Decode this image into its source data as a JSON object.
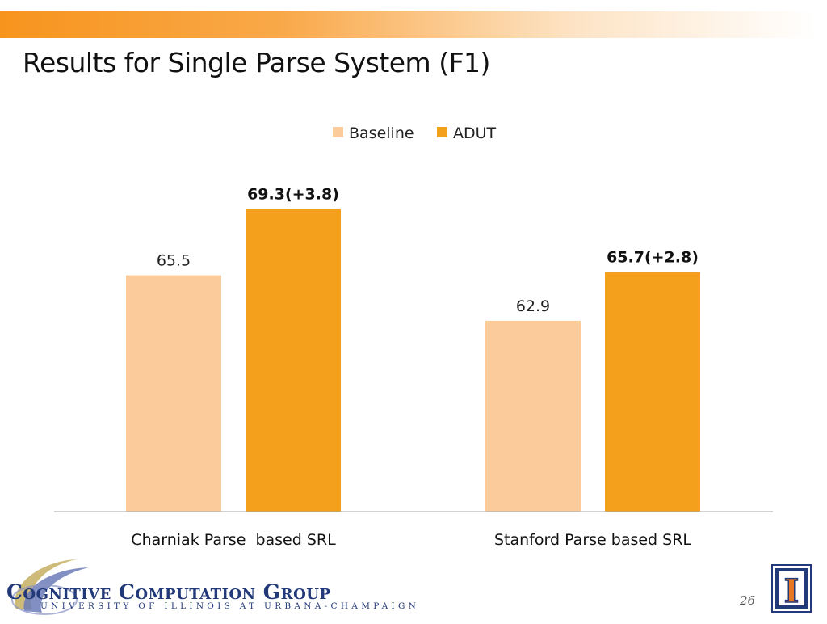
{
  "slide": {
    "title": "Results for Single Parse System (F1)",
    "page_number": "26"
  },
  "logo": {
    "main_text": "Cognitive Computation Group",
    "sub_text": "University of Illinois at Urbana-Champaign",
    "seal": "I"
  },
  "colors": {
    "baseline": "#fbcb9c",
    "adut": "#f5a01d",
    "axis": "#a6a6a6",
    "banner": "#f7941d"
  },
  "chart_data": {
    "type": "bar",
    "categories": [
      "Charniak Parse  based SRL",
      "Stanford Parse based SRL"
    ],
    "series": [
      {
        "name": "Baseline",
        "values": [
          65.5,
          62.9
        ],
        "labels": [
          "65.5",
          "62.9"
        ],
        "bold": false
      },
      {
        "name": "ADUT",
        "values": [
          69.3,
          65.7
        ],
        "labels": [
          "69.3(+3.8)",
          "65.7(+2.8)"
        ],
        "bold": true
      }
    ],
    "title": "",
    "xlabel": "",
    "ylabel": "",
    "ylim": [
      52,
      71
    ],
    "grid": false,
    "legend_position": "top-center"
  }
}
